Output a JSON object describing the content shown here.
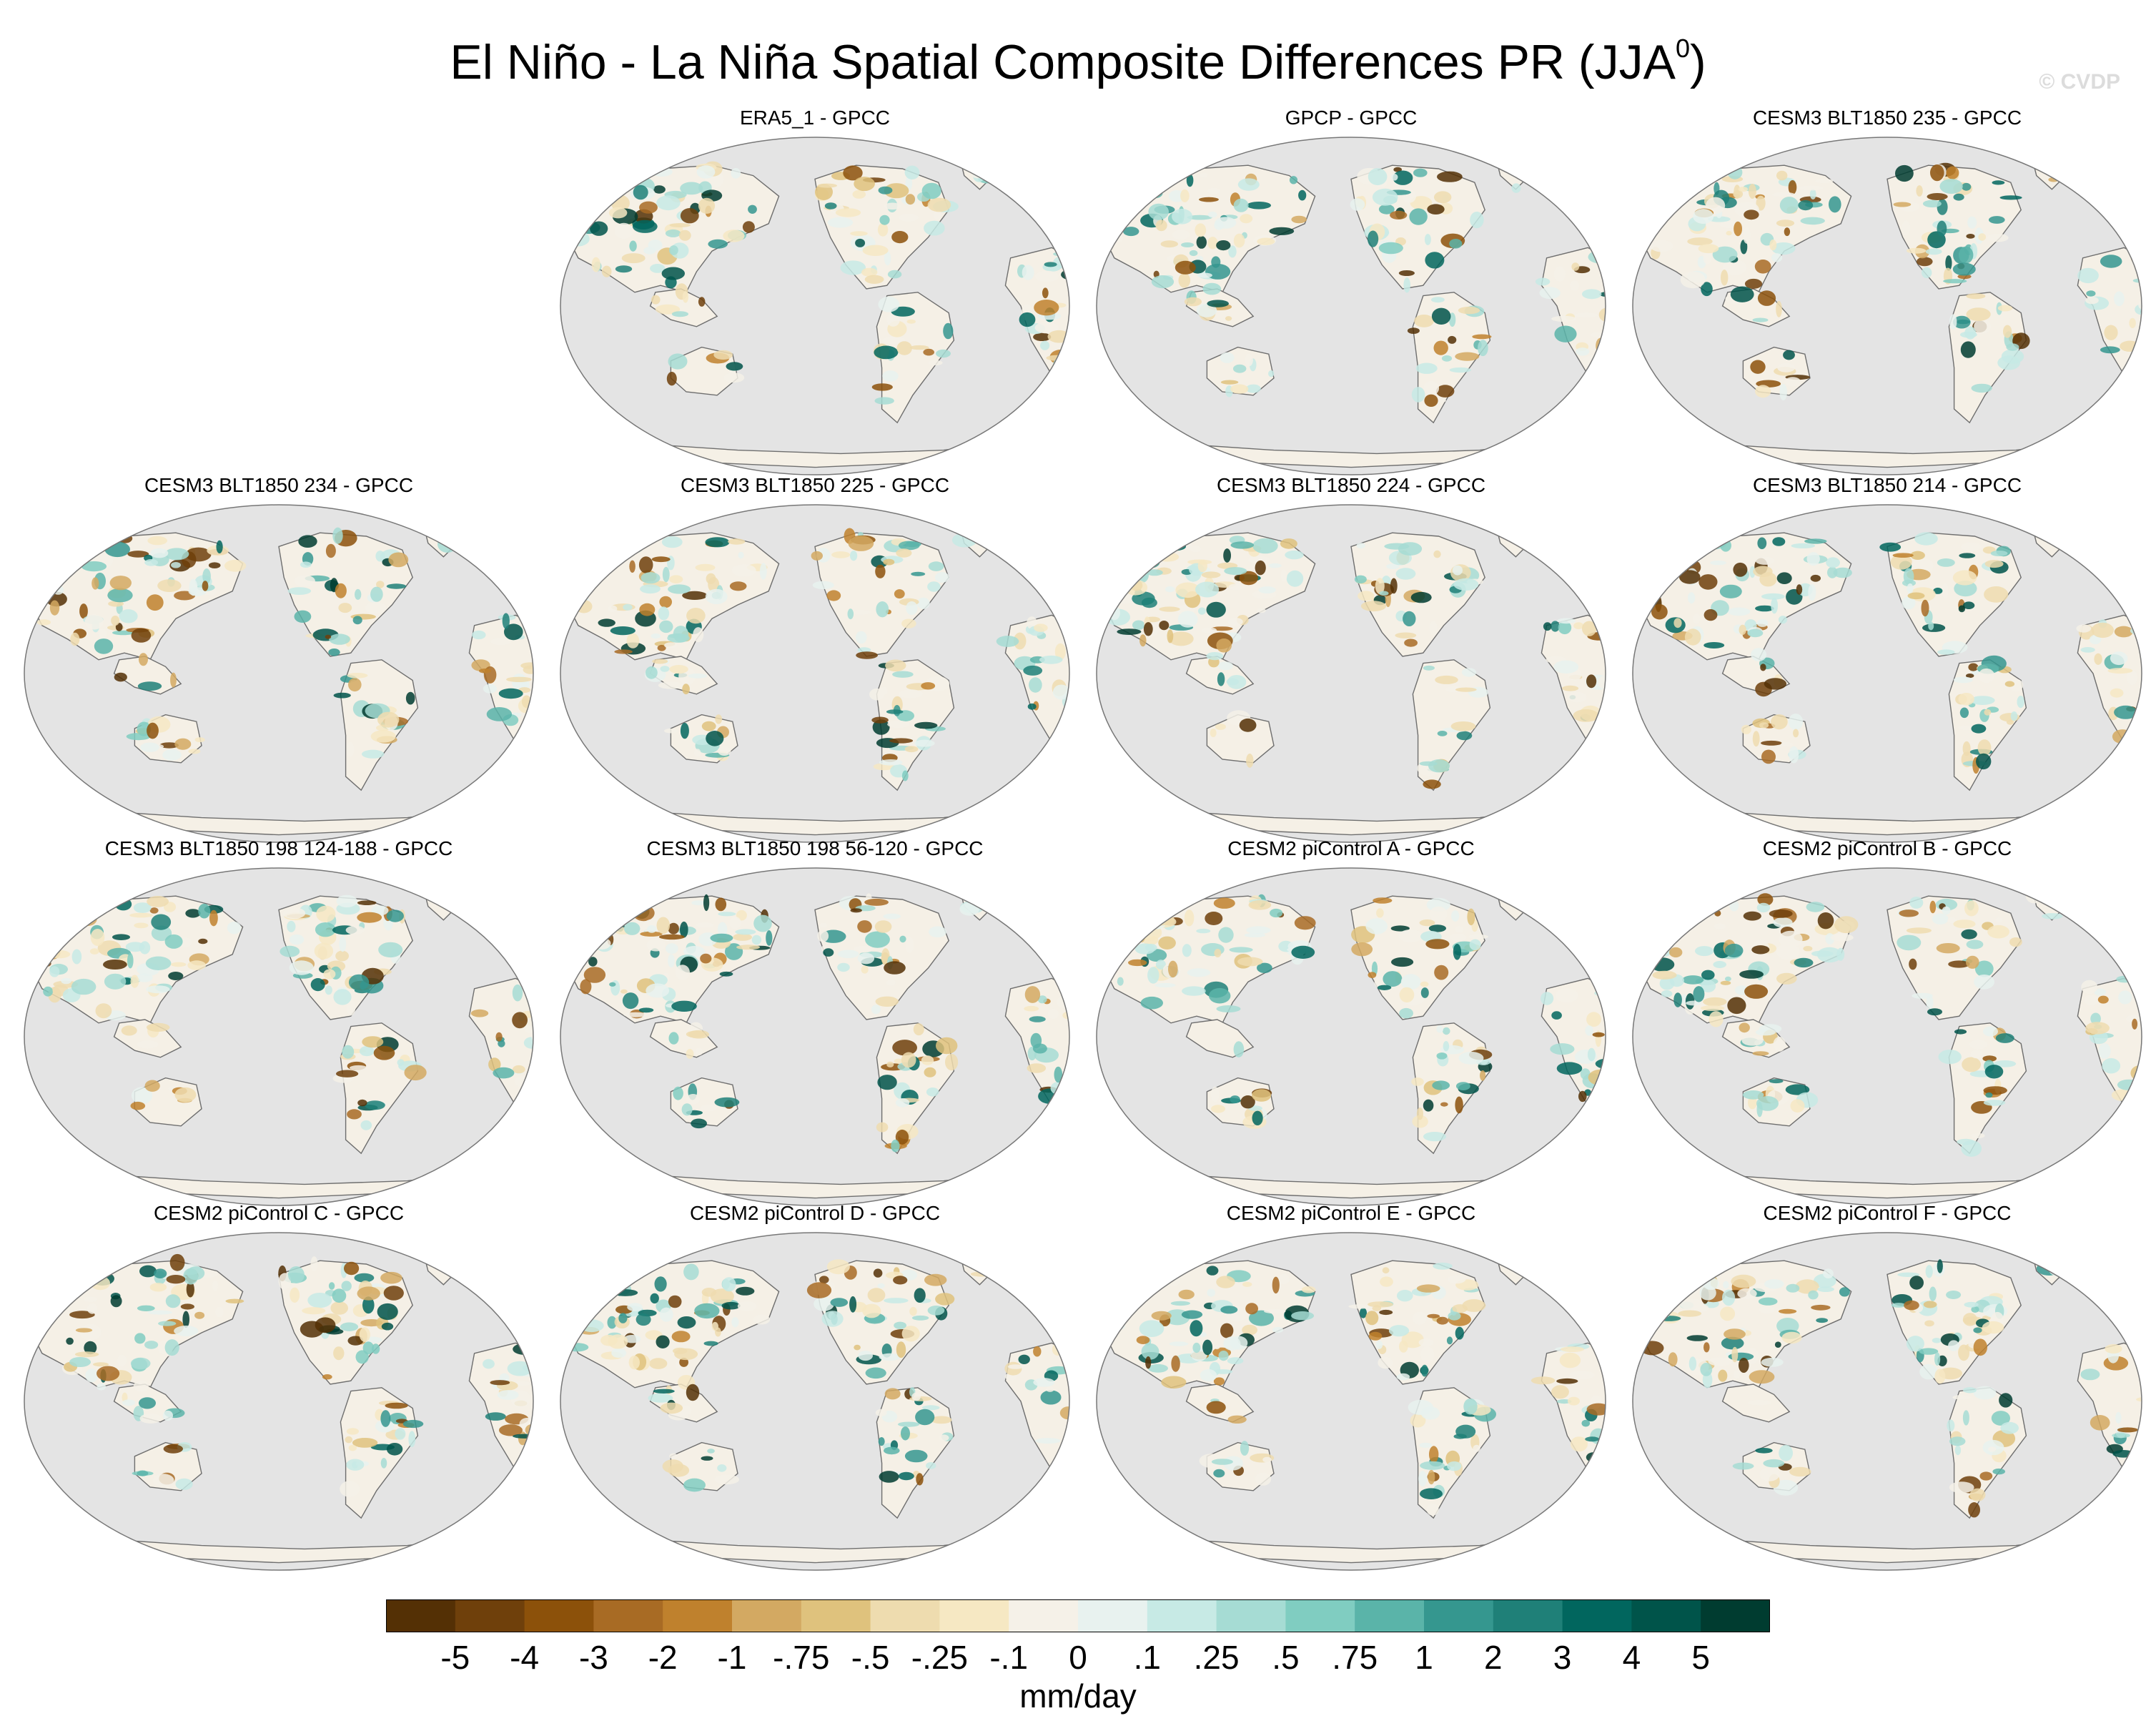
{
  "figure": {
    "title": "El Niño - La Niña Spatial Composite Differences PR (JJA",
    "title_superscript": "0",
    "title_close": ")",
    "watermark": "© CVDP"
  },
  "panels": [
    {
      "title": "ERA5_1 - GPCC"
    },
    {
      "title": "GPCP - GPCC"
    },
    {
      "title": "CESM3 BLT1850 235 - GPCC"
    },
    {
      "title": "CESM3 BLT1850 234 - GPCC"
    },
    {
      "title": "CESM3 BLT1850 225 - GPCC"
    },
    {
      "title": "CESM3 BLT1850 224 - GPCC"
    },
    {
      "title": "CESM3 BLT1850 214 - GPCC"
    },
    {
      "title": "CESM3 BLT1850 198 124-188 - GPCC"
    },
    {
      "title": "CESM3 BLT1850 198 56-120 - GPCC"
    },
    {
      "title": "CESM2 piControl A - GPCC"
    },
    {
      "title": "CESM2 piControl B - GPCC"
    },
    {
      "title": "CESM2 piControl C - GPCC"
    },
    {
      "title": "CESM2 piControl D - GPCC"
    },
    {
      "title": "CESM2 piControl E - GPCC"
    },
    {
      "title": "CESM2 piControl F - GPCC"
    }
  ],
  "map_style": {
    "ocean_color": "#e4e4e4",
    "land_color": "#f5f0e6",
    "coast_color": "#6e6e6e"
  },
  "colorbar": {
    "units": "mm/day",
    "labels": [
      "-5",
      "-4",
      "-3",
      "-2",
      "-1",
      "-.75",
      "-.5",
      "-.25",
      "-.1",
      "0",
      ".1",
      ".25",
      ".5",
      ".75",
      "1",
      "2",
      "3",
      "4",
      "5"
    ],
    "colors": [
      "#543005",
      "#6f400b",
      "#8c510a",
      "#a86b24",
      "#bf812d",
      "#d3a962",
      "#dfc27d",
      "#eedcaf",
      "#f6e8c3",
      "#f5f1e8",
      "#e8f2ef",
      "#c7eae5",
      "#a6dcd4",
      "#80cdc1",
      "#5ab4a9",
      "#35978f",
      "#1f8078",
      "#01665e",
      "#00544a",
      "#003c30"
    ]
  }
}
